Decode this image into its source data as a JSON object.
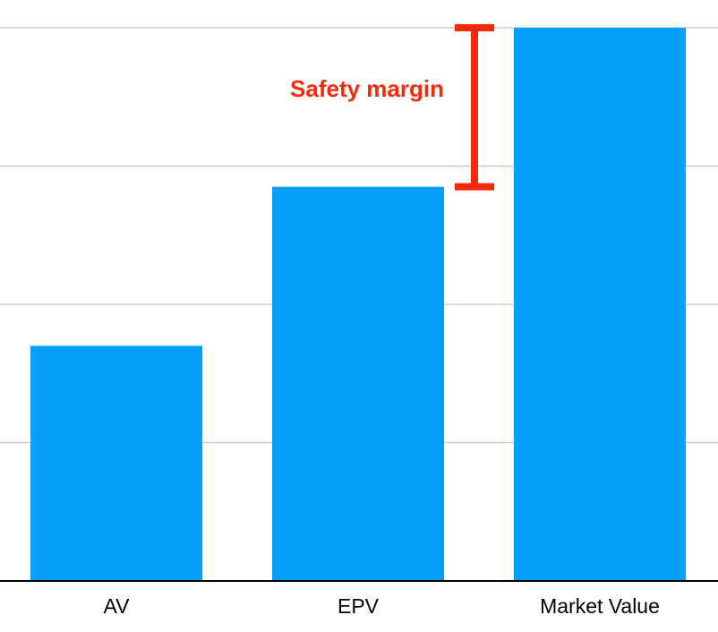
{
  "chart_data": {
    "type": "bar",
    "categories": [
      "AV",
      "EPV",
      "Market Value"
    ],
    "values": [
      1.7,
      2.85,
      4.0
    ],
    "ylim": [
      0,
      4
    ],
    "gridlines": [
      1,
      2,
      3,
      4
    ],
    "grid": true,
    "legend": "none",
    "title": "",
    "xlabel": "",
    "ylabel": "",
    "annotation": {
      "label": "Safety margin",
      "from": 2.85,
      "to": 4.0
    }
  },
  "colors": {
    "bar": "#069ffb",
    "grid": "#c4c4c4",
    "axis": "#000000",
    "annotation": "#f52a0a"
  }
}
